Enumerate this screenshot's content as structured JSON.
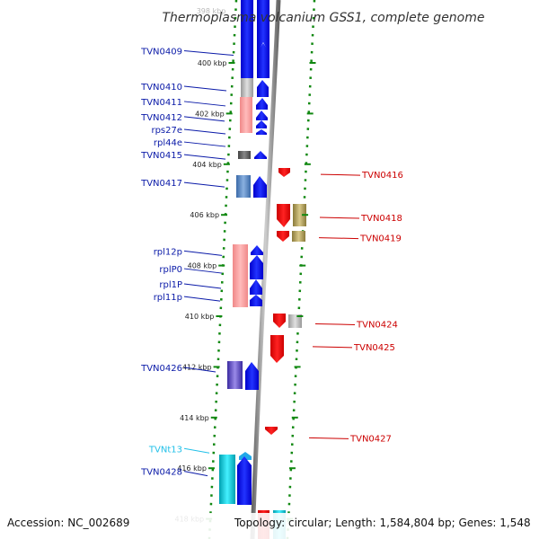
{
  "title": "Thermoplasma volcanium GSS1, complete genome",
  "top_partial_tick": "398 kbp",
  "footer": {
    "accession": "Accession: NC_002689",
    "topology": "Topology: circular; Length: 1,584,804 bp; Genes: 1,548"
  },
  "colors": {
    "forward_label": "#0a1aa8",
    "reverse_label": "#cc0000",
    "trna_label": "#22c0e8",
    "forward_gene": "#0000ee",
    "reverse_gene": "#ee0000",
    "tick": "#118811",
    "backbone": "#888888"
  },
  "ticks": [
    {
      "kbp": 400,
      "label": "400 kbp"
    },
    {
      "kbp": 402,
      "label": "402 kbp"
    },
    {
      "kbp": 404,
      "label": "404 kbp"
    },
    {
      "kbp": 406,
      "label": "406 kbp"
    },
    {
      "kbp": 408,
      "label": "408 kbp"
    },
    {
      "kbp": 410,
      "label": "410 kbp"
    },
    {
      "kbp": 412,
      "label": "412 kbp"
    },
    {
      "kbp": 414,
      "label": "414 kbp"
    },
    {
      "kbp": 416,
      "label": "416 kbp"
    },
    {
      "kbp": 418,
      "label": "418 kbp"
    }
  ],
  "forward_labels": [
    {
      "name": "TVN0409",
      "kbp": 399.7,
      "type": "gene"
    },
    {
      "name": "TVN0410",
      "kbp": 401.1,
      "type": "gene"
    },
    {
      "name": "TVN0411",
      "kbp": 401.7,
      "type": "gene"
    },
    {
      "name": "TVN0412",
      "kbp": 402.3,
      "type": "gene"
    },
    {
      "name": "rps27e",
      "kbp": 402.8,
      "type": "gene"
    },
    {
      "name": "rpl44e",
      "kbp": 403.3,
      "type": "gene"
    },
    {
      "name": "TVN0415",
      "kbp": 403.8,
      "type": "gene"
    },
    {
      "name": "TVN0417",
      "kbp": 404.9,
      "type": "gene"
    },
    {
      "name": "rpl12p",
      "kbp": 407.6,
      "type": "gene"
    },
    {
      "name": "rplP0",
      "kbp": 408.3,
      "type": "gene"
    },
    {
      "name": "rpl1P",
      "kbp": 408.9,
      "type": "gene"
    },
    {
      "name": "rpl11p",
      "kbp": 409.4,
      "type": "gene"
    },
    {
      "name": "TVN0426",
      "kbp": 412.2,
      "type": "gene"
    },
    {
      "name": "TVNt13",
      "kbp": 415.4,
      "type": "trna"
    },
    {
      "name": "TVN0428",
      "kbp": 416.3,
      "type": "gene"
    }
  ],
  "reverse_labels": [
    {
      "name": "TVN0416",
      "kbp": 404.4
    },
    {
      "name": "TVN0418",
      "kbp": 406.1
    },
    {
      "name": "TVN0419",
      "kbp": 406.9
    },
    {
      "name": "TVN0424",
      "kbp": 410.3
    },
    {
      "name": "TVN0425",
      "kbp": 411.2
    },
    {
      "name": "TVN0427",
      "kbp": 414.8
    }
  ]
}
